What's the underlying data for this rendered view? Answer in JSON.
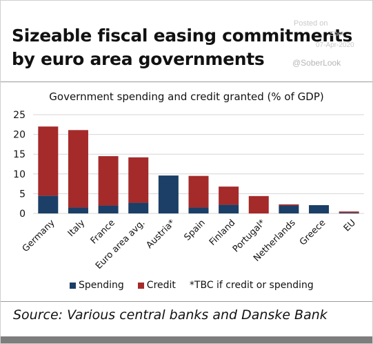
{
  "title_line1": "Sizeable fiscal easing commitments",
  "title_line2": "by euro area governments",
  "watermark": {
    "posted": "Posted on",
    "site": "Shot",
    "date": "07-Apr-2020",
    "handle": "@SoberLook"
  },
  "source": "Source: Various central banks and Danske Bank",
  "colors": {
    "spending": "#1b3f66",
    "credit": "#a52a2a",
    "grid": "#d6d6d6",
    "bottom_bar": "#7d7d7d"
  },
  "chart_data": {
    "type": "bar",
    "stacked": true,
    "title": "Government spending and credit granted (% of GDP)",
    "categories": [
      "Germany",
      "Italy",
      "France",
      "Euro area avg.",
      "Austria*",
      "Spain",
      "Finland",
      "Portugal*",
      "Netherlands",
      "Greece",
      "EU"
    ],
    "series": [
      {
        "name": "Spending",
        "values": [
          4.5,
          1.5,
          2.0,
          2.7,
          9.6,
          1.5,
          2.2,
          0.0,
          2.0,
          2.1,
          0.2
        ]
      },
      {
        "name": "Credit",
        "values": [
          17.5,
          19.6,
          12.5,
          11.5,
          0.0,
          8.0,
          4.6,
          4.4,
          0.3,
          0.0,
          0.3
        ]
      }
    ],
    "ylim": [
      0,
      25
    ],
    "yticks": [
      "0",
      "5",
      "10",
      "15",
      "20",
      "25"
    ],
    "grid": true,
    "legend": {
      "position": "bottom",
      "items": [
        {
          "label": "Spending",
          "color": "#1b3f66"
        },
        {
          "label": "Credit",
          "color": "#a52a2a"
        }
      ],
      "note": "*TBC if credit or spending"
    }
  }
}
